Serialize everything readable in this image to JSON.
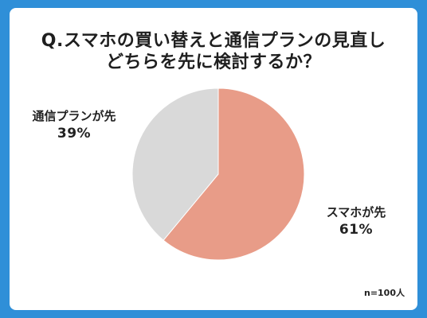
{
  "title": {
    "line1": "Q.スマホの買い替えと通信プランの見直し",
    "line2": "どちらを先に検討するか？"
  },
  "note": "n=100人",
  "colors": {
    "background": "#2f8fd8",
    "card": "#ffffff",
    "smartphone_slice": "#e89c88",
    "plan_slice": "#d9d9d9"
  },
  "chart_data": {
    "type": "pie",
    "title": "Q.スマホの買い替えと通信プランの見直し どちらを先に検討するか？",
    "slices": [
      {
        "name": "スマホが先",
        "value": 61,
        "label": "61%",
        "color": "#e89c88"
      },
      {
        "name": "通信プランが先",
        "value": 39,
        "label": "39%",
        "color": "#d9d9d9"
      }
    ],
    "start": "12 o'clock",
    "direction": "clockwise"
  }
}
